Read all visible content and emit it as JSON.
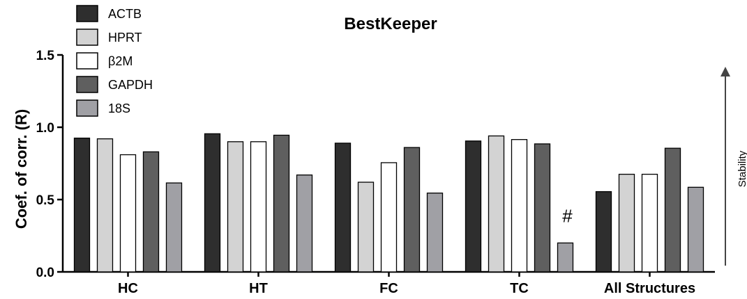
{
  "chart_data": {
    "type": "bar",
    "title": "BestKeeper",
    "ylabel": "Coef. of corr. (R)",
    "xlabel": "",
    "ylim": [
      0,
      1.5
    ],
    "yticks": [
      "0.0",
      "0.5",
      "1.0",
      "1.5"
    ],
    "ytick_values": [
      0,
      0.5,
      1.0,
      1.5
    ],
    "categories": [
      "HC",
      "HT",
      "FC",
      "TC",
      "All Structures"
    ],
    "series": [
      {
        "name": "ACTB",
        "color": "#2e2e2e",
        "values": [
          0.925,
          0.955,
          0.89,
          0.905,
          0.555
        ]
      },
      {
        "name": "HPRT",
        "color": "#d3d3d3",
        "values": [
          0.92,
          0.9,
          0.62,
          0.94,
          0.675
        ]
      },
      {
        "name": "β2M",
        "color": "#ffffff",
        "values": [
          0.81,
          0.9,
          0.755,
          0.915,
          0.675
        ]
      },
      {
        "name": "GAPDH",
        "color": "#5f5f5f",
        "values": [
          0.83,
          0.945,
          0.86,
          0.885,
          0.855
        ]
      },
      {
        "name": "18S",
        "color": "#a0a0a5",
        "values": [
          0.615,
          0.67,
          0.545,
          0.2,
          0.585
        ]
      }
    ],
    "annotations": [
      {
        "text": "#",
        "category": "TC",
        "series": "18S"
      }
    ],
    "side_label": "Stability",
    "legend_position": "top-left",
    "grid": false
  }
}
